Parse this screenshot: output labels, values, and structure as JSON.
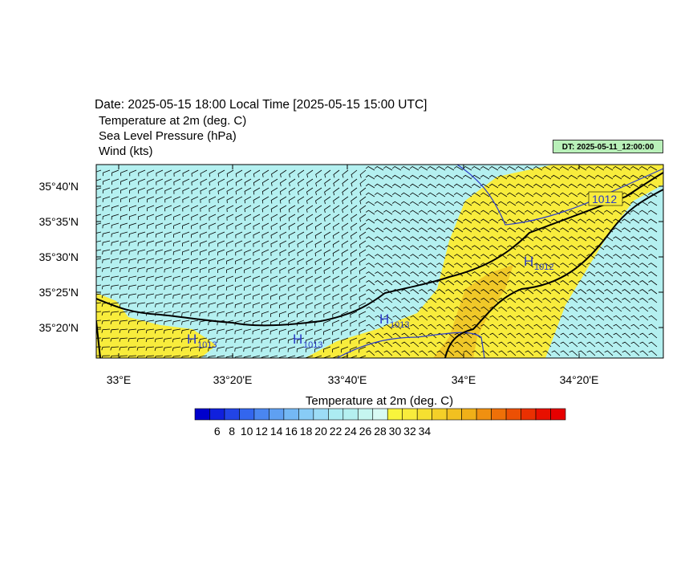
{
  "header": {
    "date_line": "Date: 2025-05-15  18:00 Local Time [2025-05-15  15:00 UTC]",
    "line2": "Temperature at 2m   (deg. C)",
    "line3": "Sea Level Pressure   (hPa)",
    "line4": "Wind   (kts)",
    "dt_badge": "DT: 2025-05-11_12:00:00"
  },
  "map": {
    "lat_labels": [
      "35°40'N",
      "35°35'N",
      "35°30'N",
      "35°25'N",
      "35°20'N"
    ],
    "lon_labels": [
      "33°E",
      "33°20'E",
      "33°40'E",
      "34°E",
      "34°20'E"
    ],
    "isobar_labels": [
      "1012"
    ],
    "high_labels": [
      {
        "H": "H",
        "value": "1013"
      },
      {
        "H": "H",
        "value": "1013"
      },
      {
        "H": "H",
        "value": "1013"
      },
      {
        "H": "H",
        "value": "1012"
      }
    ],
    "colors": {
      "cool": "#b4f0f0",
      "warm": "#f8ec3c",
      "warmer": "#f0c828",
      "coast": "#000000",
      "isobar": "#2b3cc8"
    }
  },
  "colorbar": {
    "title": "Temperature at 2m  (deg. C)",
    "labels": [
      "6",
      "8",
      "10",
      "12",
      "14",
      "16",
      "18",
      "20",
      "22",
      "24",
      "26",
      "28",
      "30",
      "32",
      "34"
    ],
    "colors": [
      "#0000cc",
      "#1020dd",
      "#2244e6",
      "#3366ee",
      "#4a86f0",
      "#5fa0f2",
      "#74b8f4",
      "#88ccf6",
      "#9cdcf6",
      "#acecf2",
      "#b4f0f0",
      "#c6f6f0",
      "#d8faf4",
      "#f8f43c",
      "#f8ec3c",
      "#f6e030",
      "#f4d028",
      "#f2c020",
      "#f0b018",
      "#f09010",
      "#ee7008",
      "#ec5004",
      "#ea3002",
      "#e81000",
      "#e60000"
    ]
  }
}
